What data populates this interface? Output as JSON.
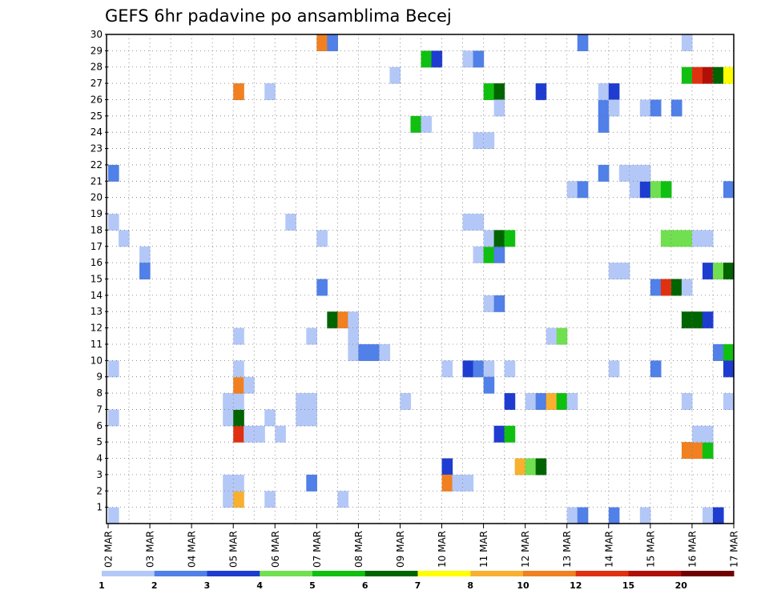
{
  "chart_data": {
    "type": "heatmap",
    "title": "GEFS 6hr padavine po ansamblima Becej",
    "x_tick_labels": [
      "02 MAR",
      "03 MAR",
      "04 MAR",
      "05 MAR",
      "06 MAR",
      "07 MAR",
      "08 MAR",
      "09 MAR",
      "10 MAR",
      "11 MAR",
      "12 MAR",
      "13 MAR",
      "14 MAR",
      "15 MAR",
      "16 MAR",
      "17 MAR"
    ],
    "y_tick_labels": [
      "1",
      "2",
      "3",
      "4",
      "5",
      "6",
      "7",
      "8",
      "9",
      "10",
      "11",
      "12",
      "13",
      "14",
      "15",
      "16",
      "17",
      "18",
      "19",
      "20",
      "21",
      "22",
      "23",
      "24",
      "25",
      "26",
      "27",
      "28",
      "29",
      "30"
    ],
    "x_steps_per_day": 4,
    "x_range_steps": [
      0,
      60
    ],
    "y_range": [
      0,
      30
    ],
    "grid": true,
    "legend": {
      "position": "bottom",
      "labels": [
        "1",
        "2",
        "3",
        "4",
        "5",
        "6",
        "7",
        "8",
        "10",
        "12",
        "15",
        "20"
      ],
      "colors": [
        "#b4c8f8",
        "#5080e8",
        "#1e3cd0",
        "#70e050",
        "#10c010",
        "#006400",
        "#ffff00",
        "#f8b030",
        "#f08020",
        "#e03010",
        "#b01008",
        "#700000"
      ]
    },
    "cells": [
      [
        0,
        0,
        1
      ],
      [
        3,
        16,
        1
      ],
      [
        3,
        15,
        2
      ],
      [
        0,
        21,
        2
      ],
      [
        0,
        18,
        1
      ],
      [
        0,
        9,
        1
      ],
      [
        0,
        6,
        1
      ],
      [
        1,
        17,
        1
      ],
      [
        11,
        1,
        1
      ],
      [
        11,
        2,
        1
      ],
      [
        11,
        6,
        1
      ],
      [
        11,
        7,
        1
      ],
      [
        12,
        1,
        8
      ],
      [
        12,
        2,
        1
      ],
      [
        12,
        5,
        12
      ],
      [
        12,
        6,
        6
      ],
      [
        12,
        7,
        1
      ],
      [
        12,
        8,
        10
      ],
      [
        12,
        9,
        1
      ],
      [
        12,
        11,
        1
      ],
      [
        12,
        26,
        10
      ],
      [
        13,
        5,
        1
      ],
      [
        13,
        8,
        1
      ],
      [
        14,
        5,
        1
      ],
      [
        15,
        1,
        1
      ],
      [
        15,
        6,
        1
      ],
      [
        15,
        26,
        1
      ],
      [
        16,
        5,
        1
      ],
      [
        17,
        18,
        1
      ],
      [
        18,
        6,
        1
      ],
      [
        18,
        7,
        1
      ],
      [
        19,
        2,
        2
      ],
      [
        19,
        6,
        1
      ],
      [
        19,
        7,
        1
      ],
      [
        19,
        11,
        1
      ],
      [
        20,
        14,
        2
      ],
      [
        20,
        17,
        1
      ],
      [
        20,
        29,
        10
      ],
      [
        21,
        29,
        2
      ],
      [
        21,
        12,
        6
      ],
      [
        22,
        12,
        10
      ],
      [
        23,
        10,
        1
      ],
      [
        23,
        11,
        1
      ],
      [
        23,
        12,
        1
      ],
      [
        22,
        1,
        1
      ],
      [
        24,
        10,
        2
      ],
      [
        25,
        10,
        2
      ],
      [
        26,
        10,
        1
      ],
      [
        27,
        27,
        1
      ],
      [
        28,
        7,
        1
      ],
      [
        29,
        24,
        5
      ],
      [
        30,
        24,
        1
      ],
      [
        30,
        28,
        5
      ],
      [
        31,
        28,
        3
      ],
      [
        32,
        9,
        1
      ],
      [
        32,
        3,
        3
      ],
      [
        32,
        2,
        10
      ],
      [
        33,
        2,
        1
      ],
      [
        34,
        2,
        1
      ],
      [
        34,
        18,
        1
      ],
      [
        34,
        28,
        1
      ],
      [
        35,
        28,
        2
      ],
      [
        34,
        9,
        3
      ],
      [
        35,
        9,
        2
      ],
      [
        35,
        23,
        1
      ],
      [
        36,
        23,
        1
      ],
      [
        34,
        18,
        1
      ],
      [
        35,
        18,
        1
      ],
      [
        35,
        16,
        1
      ],
      [
        36,
        16,
        5
      ],
      [
        37,
        16,
        2
      ],
      [
        36,
        17,
        1
      ],
      [
        37,
        17,
        6
      ],
      [
        38,
        17,
        5
      ],
      [
        36,
        13,
        1
      ],
      [
        37,
        13,
        2
      ],
      [
        36,
        9,
        1
      ],
      [
        36,
        8,
        2
      ],
      [
        36,
        26,
        5
      ],
      [
        37,
        26,
        6
      ],
      [
        37,
        25,
        1
      ],
      [
        37,
        5,
        3
      ],
      [
        38,
        5,
        5
      ],
      [
        38,
        9,
        1
      ],
      [
        38,
        7,
        3
      ],
      [
        39,
        3,
        8
      ],
      [
        40,
        3,
        4
      ],
      [
        41,
        3,
        6
      ],
      [
        40,
        7,
        1
      ],
      [
        41,
        7,
        2
      ],
      [
        42,
        7,
        8
      ],
      [
        43,
        7,
        5
      ],
      [
        44,
        7,
        1
      ],
      [
        41,
        26,
        3
      ],
      [
        42,
        11,
        1
      ],
      [
        43,
        11,
        4
      ],
      [
        44,
        0,
        1
      ],
      [
        45,
        0,
        2
      ],
      [
        44,
        20,
        1
      ],
      [
        45,
        20,
        2
      ],
      [
        45,
        29,
        2
      ],
      [
        47,
        21,
        2
      ],
      [
        47,
        24,
        2
      ],
      [
        47,
        25,
        2
      ],
      [
        47,
        26,
        1
      ],
      [
        48,
        26,
        3
      ],
      [
        48,
        25,
        1
      ],
      [
        48,
        15,
        1
      ],
      [
        49,
        15,
        1
      ],
      [
        48,
        0,
        2
      ],
      [
        48,
        9,
        1
      ],
      [
        49,
        21,
        1
      ],
      [
        50,
        21,
        1
      ],
      [
        50,
        20,
        1
      ],
      [
        51,
        20,
        3
      ],
      [
        51,
        21,
        1
      ],
      [
        52,
        20,
        4
      ],
      [
        53,
        20,
        5
      ],
      [
        51,
        0,
        1
      ],
      [
        51,
        25,
        1
      ],
      [
        52,
        25,
        2
      ],
      [
        52,
        14,
        2
      ],
      [
        53,
        14,
        13
      ],
      [
        54,
        14,
        6
      ],
      [
        55,
        14,
        1
      ],
      [
        52,
        9,
        2
      ],
      [
        53,
        17,
        4
      ],
      [
        54,
        17,
        4
      ],
      [
        55,
        17,
        4
      ],
      [
        56,
        17,
        1
      ],
      [
        57,
        17,
        1
      ],
      [
        54,
        25,
        2
      ],
      [
        55,
        7,
        1
      ],
      [
        55,
        12,
        6
      ],
      [
        56,
        12,
        6
      ],
      [
        57,
        12,
        3
      ],
      [
        55,
        4,
        10
      ],
      [
        56,
        4,
        10
      ],
      [
        57,
        4,
        5
      ],
      [
        56,
        5,
        1
      ],
      [
        57,
        5,
        1
      ],
      [
        55,
        29,
        1
      ],
      [
        55,
        27,
        5
      ],
      [
        56,
        27,
        13
      ],
      [
        57,
        27,
        16
      ],
      [
        58,
        27,
        6
      ],
      [
        59,
        27,
        7
      ],
      [
        57,
        15,
        3
      ],
      [
        58,
        15,
        4
      ],
      [
        59,
        15,
        6
      ],
      [
        57,
        0,
        1
      ],
      [
        58,
        0,
        3
      ],
      [
        58,
        10,
        2
      ],
      [
        59,
        10,
        5
      ],
      [
        59,
        9,
        3
      ],
      [
        59,
        20,
        2
      ],
      [
        59,
        7,
        1
      ]
    ]
  }
}
